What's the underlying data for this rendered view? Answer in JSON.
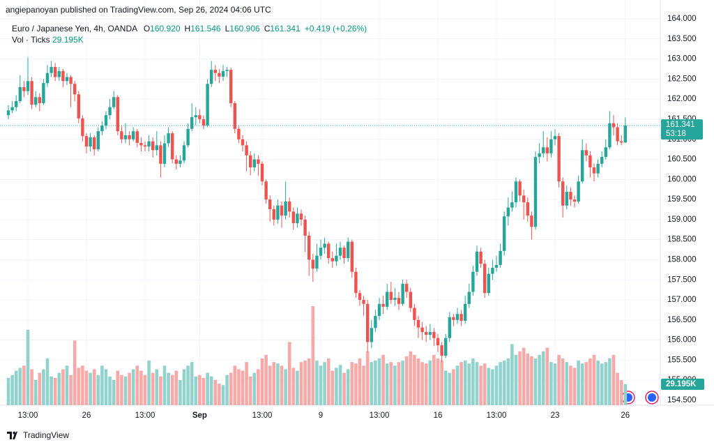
{
  "header": {
    "published": "angiepanoyan published on TradingView.com, Sep 26, 2024 04:06 UTC",
    "symbol": "Euro / Japanese Yen, 4h, OANDA",
    "ohlc": [
      {
        "key": "O",
        "value": "160.920"
      },
      {
        "key": "H",
        "value": "161.546"
      },
      {
        "key": "L",
        "value": "160.906"
      },
      {
        "key": "C",
        "value": "161.341"
      }
    ],
    "change": "+0.419 (+0.26%)",
    "volume_title": "Vol · Ticks"
  },
  "chart_data": {
    "type": "candlestick",
    "up_color": "#26a69a",
    "down_color": "#ef5350",
    "up_volume_color": "#92d2cc",
    "down_volume_color": "#f7a9a7",
    "grid": true,
    "ylim": [
      154.5,
      164
    ],
    "yticks": [
      {
        "value": 154.5,
        "label": "154.500"
      },
      {
        "value": 155,
        "label": "155.000"
      },
      {
        "value": 155.5,
        "label": "155.500"
      },
      {
        "value": 156,
        "label": "156.000"
      },
      {
        "value": 156.5,
        "label": "156.500"
      },
      {
        "value": 157,
        "label": "157.000"
      },
      {
        "value": 157.5,
        "label": "157.500"
      },
      {
        "value": 158,
        "label": "158.000"
      },
      {
        "value": 158.5,
        "label": "158.500"
      },
      {
        "value": 159,
        "label": "159.000"
      },
      {
        "value": 159.5,
        "label": "159.500"
      },
      {
        "value": 160,
        "label": "160.000"
      },
      {
        "value": 160.5,
        "label": "160.500"
      },
      {
        "value": 161,
        "label": "161.000"
      },
      {
        "value": 161.5,
        "label": "161.500"
      },
      {
        "value": 162,
        "label": "162.000"
      },
      {
        "value": 162.5,
        "label": "162.500"
      },
      {
        "value": 163,
        "label": "163.000"
      },
      {
        "value": 163.5,
        "label": "163.500"
      },
      {
        "value": 164,
        "label": "164.000"
      }
    ],
    "xticks": [
      {
        "value": 5,
        "label": "13:00"
      },
      {
        "value": 20,
        "label": "26"
      },
      {
        "value": 35,
        "label": "13:00"
      },
      {
        "value": 49,
        "label": "Sep",
        "bold": true
      },
      {
        "value": 65,
        "label": "13:00"
      },
      {
        "value": 80,
        "label": "9"
      },
      {
        "value": 95,
        "label": "13:00"
      },
      {
        "value": 110,
        "label": "16"
      },
      {
        "value": 125,
        "label": "13:00"
      },
      {
        "value": 140,
        "label": "23"
      },
      {
        "value": 158,
        "label": "26"
      }
    ],
    "open": [
      161.6,
      161.72,
      161.8,
      161.95,
      162.3,
      162.2,
      162.45,
      161.86,
      162.05,
      161.9,
      162.4,
      162.65,
      162.8,
      162.55,
      162.7,
      162.45,
      162.55,
      162.38,
      162.12,
      161.52,
      161.08,
      160.82,
      161.05,
      160.75,
      161.2,
      161.34,
      161.6,
      161.8,
      162.05,
      161.2,
      161.0,
      161.1,
      161.0,
      161.2,
      160.91,
      160.85,
      160.82,
      160.95,
      160.73,
      160.85,
      160.39,
      160.9,
      161.15,
      160.5,
      160.39,
      160.47,
      160.85,
      161.26,
      161.55,
      161.6,
      161.5,
      161.34,
      162.38,
      162.73,
      162.65,
      162.56,
      162.7,
      162.73,
      161.9,
      161.26,
      161.0,
      160.85,
      160.6,
      160.3,
      160.5,
      160.39,
      159.95,
      159.5,
      159.26,
      159.0,
      159.35,
      159.1,
      159.45,
      159.2,
      158.91,
      159.15,
      159.0,
      158.6,
      158.0,
      157.78,
      158.1,
      158.3,
      158.4,
      158.04,
      157.96,
      158.1,
      158.3,
      158.04,
      158.45,
      157.7,
      157.17,
      157.0,
      156.9,
      155.95,
      156.3,
      156.6,
      156.9,
      156.83,
      157.2,
      157.0,
      157.05,
      156.9,
      157.4,
      157.2,
      156.8,
      156.5,
      156.31,
      156.2,
      156.13,
      156.2,
      156.05,
      155.87,
      155.61,
      156.05,
      156.57,
      156.5,
      156.65,
      156.48,
      156.9,
      157.2,
      157.7,
      158.2,
      157.9,
      157.17,
      157.65,
      157.8,
      157.87,
      158.22,
      159.08,
      159.3,
      159.43,
      159.95,
      159.6,
      159.43,
      159.1,
      158.82,
      160.56,
      160.65,
      160.8,
      160.65,
      161.0,
      161.08,
      159.95,
      159.35,
      159.69,
      159.5,
      159.45,
      159.95,
      160.73,
      160.6,
      160.3,
      160.15,
      160.39,
      160.56,
      160.8,
      161.4,
      161.3,
      160.95,
      160.92
    ],
    "high": [
      161.85,
      161.95,
      162.1,
      162.6,
      162.45,
      163.04,
      162.55,
      162.2,
      162.15,
      162.5,
      162.85,
      162.95,
      162.9,
      162.8,
      162.75,
      162.65,
      162.6,
      162.45,
      162.2,
      161.6,
      161.15,
      161.15,
      161.1,
      161.3,
      161.45,
      161.7,
      162.0,
      162.2,
      162.1,
      161.35,
      161.4,
      161.2,
      161.3,
      161.25,
      161.05,
      160.95,
      161.1,
      161.05,
      161.2,
      160.95,
      161.1,
      161.3,
      161.2,
      160.6,
      160.6,
      160.95,
      161.4,
      161.9,
      161.8,
      161.75,
      161.6,
      162.5,
      162.95,
      162.85,
      162.75,
      162.85,
      162.8,
      162.78,
      161.95,
      161.35,
      161.1,
      160.95,
      160.7,
      160.65,
      160.6,
      160.45,
      160.0,
      159.6,
      159.35,
      159.5,
      159.45,
      159.95,
      159.55,
      159.3,
      159.3,
      159.25,
      159.1,
      158.7,
      158.15,
      158.4,
      158.5,
      158.55,
      158.45,
      158.2,
      158.4,
      158.45,
      158.35,
      158.55,
      158.5,
      157.8,
      157.25,
      157.1,
      157.0,
      156.5,
      156.75,
      157.05,
      157.1,
      157.4,
      157.45,
      157.3,
      157.2,
      157.5,
      157.5,
      157.3,
      156.9,
      156.6,
      156.45,
      156.35,
      156.4,
      156.3,
      156.15,
      155.95,
      156.15,
      156.7,
      156.65,
      156.8,
      156.75,
      157.1,
      157.4,
      157.85,
      158.35,
      158.3,
      158.0,
      157.8,
      158.0,
      158.1,
      158.4,
      159.2,
      159.55,
      159.7,
      160.05,
      160.0,
      159.75,
      159.55,
      159.2,
      160.7,
      160.9,
      161.2,
      161.05,
      161.2,
      161.25,
      161.15,
      160.05,
      159.85,
      159.8,
      159.6,
      160.1,
      161.0,
      160.9,
      160.7,
      160.4,
      160.5,
      160.7,
      161.0,
      161.7,
      161.6,
      161.4,
      161.1,
      161.546
    ],
    "low": [
      161.5,
      161.65,
      161.7,
      161.9,
      162.05,
      162.1,
      161.75,
      161.8,
      161.7,
      161.85,
      162.3,
      162.55,
      162.45,
      162.45,
      162.3,
      162.35,
      161.8,
      161.95,
      161.4,
      160.95,
      160.65,
      160.7,
      160.6,
      160.7,
      161.1,
      161.25,
      161.5,
      161.75,
      161.1,
      160.9,
      160.9,
      160.85,
      160.95,
      160.8,
      160.7,
      160.7,
      160.7,
      160.55,
      160.6,
      160.05,
      160.3,
      160.8,
      160.4,
      160.25,
      160.3,
      160.4,
      160.8,
      161.2,
      161.35,
      161.4,
      161.25,
      161.3,
      162.3,
      162.45,
      162.4,
      162.45,
      162.55,
      161.8,
      161.15,
      160.9,
      160.7,
      160.2,
      160.1,
      160.2,
      160.1,
      159.85,
      159.4,
      158.95,
      158.85,
      158.9,
      158.8,
      159.0,
      159.05,
      158.75,
      158.8,
      158.85,
      158.2,
      157.6,
      157.45,
      157.7,
      158.0,
      158.15,
      157.9,
      157.8,
      157.85,
      158.0,
      157.9,
      157.95,
      157.55,
      157.05,
      156.85,
      156.6,
      155.7,
      155.8,
      156.2,
      156.5,
      156.65,
      156.75,
      156.9,
      156.85,
      156.75,
      156.85,
      157.05,
      156.7,
      156.35,
      156.05,
      156.0,
      155.95,
      156.0,
      155.85,
      155.7,
      155.45,
      155.55,
      155.95,
      156.35,
      156.4,
      156.35,
      156.4,
      156.8,
      157.1,
      157.6,
      157.8,
      157.05,
      157.1,
      157.5,
      157.7,
      157.8,
      158.1,
      158.85,
      159.2,
      159.3,
      159.45,
      159.0,
      158.95,
      158.5,
      158.75,
      160.4,
      160.55,
      160.45,
      160.55,
      160.85,
      159.8,
      159.05,
      159.25,
      159.35,
      159.3,
      159.4,
      159.9,
      160.45,
      160.05,
      159.95,
      160.05,
      160.3,
      160.5,
      160.75,
      161.1,
      160.85,
      160.85,
      160.906
    ],
    "close": [
      161.72,
      161.8,
      161.95,
      162.3,
      162.2,
      162.45,
      161.86,
      162.05,
      161.9,
      162.4,
      162.65,
      162.8,
      162.55,
      162.7,
      162.45,
      162.55,
      162.38,
      162.12,
      161.52,
      161.08,
      160.82,
      161.05,
      160.75,
      161.2,
      161.34,
      161.6,
      161.8,
      162.05,
      161.2,
      161.0,
      161.1,
      161.0,
      161.2,
      160.91,
      160.85,
      160.82,
      160.95,
      160.73,
      160.85,
      160.39,
      160.9,
      161.15,
      160.5,
      160.39,
      160.47,
      160.85,
      161.26,
      161.55,
      161.6,
      161.5,
      161.34,
      162.38,
      162.73,
      162.65,
      162.56,
      162.7,
      162.73,
      161.9,
      161.26,
      161.0,
      160.85,
      160.6,
      160.3,
      160.5,
      160.39,
      159.95,
      159.5,
      159.26,
      159.0,
      159.35,
      159.1,
      159.45,
      159.2,
      158.91,
      159.15,
      159.0,
      158.6,
      158.0,
      157.78,
      158.1,
      158.3,
      158.4,
      158.04,
      157.96,
      158.1,
      158.3,
      158.04,
      158.45,
      157.7,
      157.17,
      157.0,
      156.9,
      155.95,
      156.3,
      156.6,
      156.9,
      156.83,
      157.2,
      157.0,
      157.05,
      156.9,
      157.4,
      157.2,
      156.8,
      156.5,
      156.31,
      156.2,
      156.13,
      156.2,
      156.05,
      155.87,
      155.61,
      156.05,
      156.57,
      156.5,
      156.65,
      156.48,
      156.9,
      157.2,
      157.7,
      158.2,
      157.9,
      157.17,
      157.65,
      157.8,
      157.87,
      158.22,
      159.08,
      159.3,
      159.43,
      159.95,
      159.6,
      159.43,
      159.1,
      158.82,
      160.56,
      160.65,
      160.8,
      160.65,
      161.0,
      161.08,
      159.95,
      159.35,
      159.69,
      159.5,
      159.45,
      159.95,
      160.73,
      160.6,
      160.3,
      160.15,
      160.39,
      160.56,
      160.8,
      161.4,
      161.3,
      160.95,
      160.92,
      161.341
    ],
    "volume": [
      38,
      42,
      48,
      52,
      55,
      105,
      50,
      35,
      45,
      50,
      65,
      40,
      38,
      45,
      50,
      55,
      42,
      90,
      52,
      55,
      48,
      45,
      50,
      42,
      55,
      50,
      40,
      35,
      48,
      42,
      40,
      45,
      50,
      55,
      48,
      42,
      62,
      45,
      50,
      40,
      55,
      45,
      42,
      48,
      35,
      50,
      55,
      60,
      40,
      42,
      38,
      45,
      40,
      35,
      30,
      28,
      42,
      45,
      55,
      50,
      48,
      60,
      40,
      45,
      50,
      65,
      70,
      55,
      60,
      58,
      55,
      50,
      88,
      52,
      48,
      60,
      62,
      65,
      138,
      62,
      55,
      60,
      65,
      48,
      52,
      56,
      45,
      50,
      60,
      58,
      65,
      55,
      75,
      60,
      62,
      65,
      70,
      58,
      60,
      55,
      60,
      62,
      68,
      75,
      70,
      65,
      60,
      58,
      62,
      70,
      65,
      62,
      48,
      45,
      50,
      55,
      60,
      62,
      58,
      65,
      60,
      55,
      58,
      52,
      50,
      55,
      60,
      62,
      65,
      85,
      70,
      75,
      80,
      72,
      68,
      65,
      70,
      75,
      80,
      60,
      58,
      70,
      65,
      60,
      55,
      52,
      62,
      58,
      60,
      65,
      70,
      62,
      58,
      60,
      65,
      70,
      45,
      35,
      29.195
    ],
    "last_volume_label": "29.195K",
    "countdown": "53:18"
  },
  "footer": {
    "brand": "TradingView"
  }
}
